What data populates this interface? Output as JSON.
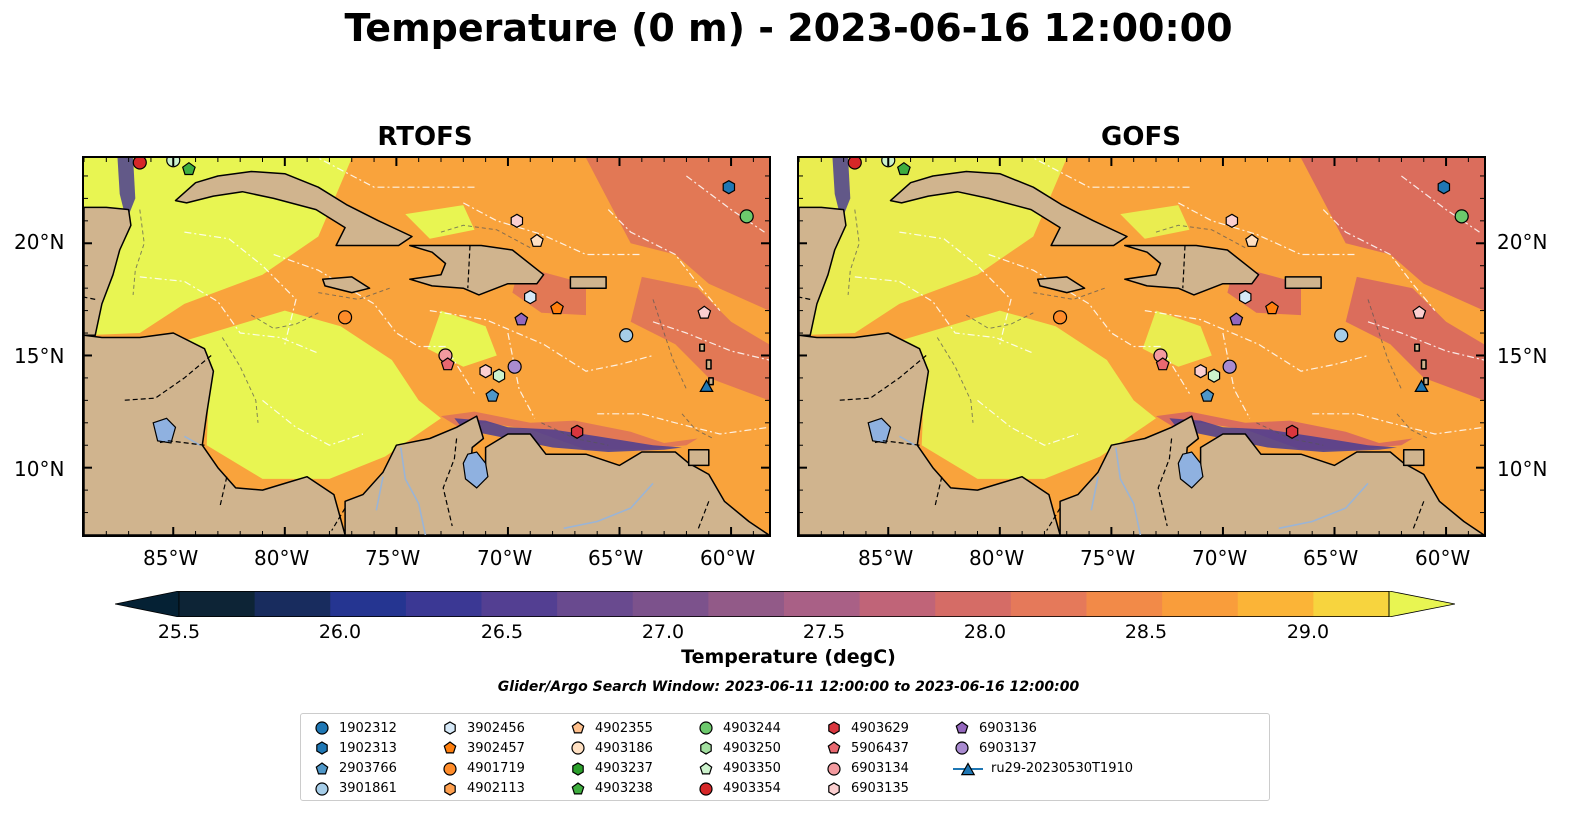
{
  "title": "Temperature (0 m) - 2023-06-16 12:00:00",
  "panels": [
    {
      "title": "RTOFS"
    },
    {
      "title": "GOFS"
    }
  ],
  "axes": {
    "x_ticks": [
      "85°W",
      "80°W",
      "75°W",
      "70°W",
      "65°W",
      "60°W"
    ],
    "x_values": [
      -85,
      -80,
      -75,
      -70,
      -65,
      -60
    ],
    "y_ticks": [
      "20°N",
      "15°N",
      "10°N"
    ],
    "y_values": [
      20,
      15,
      10
    ],
    "lon_range": [
      -89,
      -58.3
    ],
    "lat_range": [
      7,
      23.8
    ]
  },
  "colorbar": {
    "title": "Temperature (degC)",
    "ticks": [
      "25.5",
      "26.0",
      "26.5",
      "27.0",
      "27.5",
      "28.0",
      "28.5",
      "29.0"
    ],
    "range": [
      25.25,
      29.25
    ],
    "colors": [
      "#0d2436",
      "#182c5e",
      "#253591",
      "#3b3894",
      "#533f92",
      "#694a8f",
      "#7c528c",
      "#925a88",
      "#a96086",
      "#c06478",
      "#d56c66",
      "#e5795a",
      "#f28a48",
      "#f99d3b",
      "#fbb437",
      "#f7d43e"
    ],
    "under_color": "#052134",
    "over_color": "#e8f552"
  },
  "colors": {
    "land": "#d0b48e",
    "sea_warm": "#e8f552",
    "sea_mid": "#f9a33c",
    "sea_hot": "#d96a5e",
    "lake": "#8fb1e0"
  },
  "search_window": "Glider/Argo Search Window: 2023-06-11 12:00:00 to 2023-06-16 12:00:00",
  "legend": [
    {
      "label": "1902312",
      "marker": "circle",
      "color": "#1f77b4"
    },
    {
      "label": "1902313",
      "marker": "hexagon",
      "color": "#1f77b4"
    },
    {
      "label": "2903766",
      "marker": "pentagon",
      "color": "#4f97c8"
    },
    {
      "label": "3901861",
      "marker": "circle",
      "color": "#a6cde8"
    },
    {
      "label": "3902456",
      "marker": "hexagon",
      "color": "#d6e9f8"
    },
    {
      "label": "3902457",
      "marker": "pentagon",
      "color": "#ff7f0e"
    },
    {
      "label": "4901719",
      "marker": "circle",
      "color": "#ff8c2a"
    },
    {
      "label": "4902113",
      "marker": "hexagon",
      "color": "#ffa04f"
    },
    {
      "label": "4902355",
      "marker": "pentagon",
      "color": "#ffc08c"
    },
    {
      "label": "4903186",
      "marker": "circle",
      "color": "#ffe0c2"
    },
    {
      "label": "4903237",
      "marker": "hexagon",
      "color": "#2ca02c"
    },
    {
      "label": "4903238",
      "marker": "pentagon",
      "color": "#3fae3f"
    },
    {
      "label": "4903244",
      "marker": "circle",
      "color": "#6cc96c"
    },
    {
      "label": "4903250",
      "marker": "hexagon",
      "color": "#a3e0a0"
    },
    {
      "label": "4903350",
      "marker": "pentagon",
      "color": "#ccf2cc"
    },
    {
      "label": "4903354",
      "marker": "circle",
      "color": "#d62728"
    },
    {
      "label": "4903629",
      "marker": "hexagon",
      "color": "#d9363e"
    },
    {
      "label": "5906437",
      "marker": "pentagon",
      "color": "#e86870"
    },
    {
      "label": "6903134",
      "marker": "circle",
      "color": "#f39a9f"
    },
    {
      "label": "6903135",
      "marker": "hexagon",
      "color": "#fbcfd0"
    },
    {
      "label": "6903136",
      "marker": "pentagon",
      "color": "#9467bd"
    },
    {
      "label": "6903137",
      "marker": "circle",
      "color": "#a98bd0"
    },
    {
      "label": "ru29-20230530T1910",
      "marker": "triangle-line",
      "color": "#1f77b4"
    }
  ],
  "floats": [
    {
      "lon": -86.5,
      "lat": 23.6,
      "marker": "circle",
      "color": "#d62728"
    },
    {
      "lon": -85.0,
      "lat": 23.7,
      "marker": "circle",
      "color": "#ccf2cc"
    },
    {
      "lon": -84.3,
      "lat": 23.3,
      "marker": "pentagon",
      "color": "#3fae3f"
    },
    {
      "lon": -60.1,
      "lat": 22.5,
      "marker": "hexagon",
      "color": "#1f77b4"
    },
    {
      "lon": -59.3,
      "lat": 21.2,
      "marker": "circle",
      "color": "#6cc96c"
    },
    {
      "lon": -69.6,
      "lat": 21.0,
      "marker": "hexagon",
      "color": "#fbcfd0"
    },
    {
      "lon": -68.7,
      "lat": 20.1,
      "marker": "pentagon",
      "color": "#ffe0c2"
    },
    {
      "lon": -77.3,
      "lat": 16.7,
      "marker": "circle",
      "color": "#ff8c2a"
    },
    {
      "lon": -69.0,
      "lat": 17.6,
      "marker": "hexagon",
      "color": "#d6e9f8"
    },
    {
      "lon": -67.8,
      "lat": 17.1,
      "marker": "pentagon",
      "color": "#ff7f0e"
    },
    {
      "lon": -69.4,
      "lat": 16.6,
      "marker": "pentagon",
      "color": "#9467bd"
    },
    {
      "lon": -64.7,
      "lat": 15.9,
      "marker": "circle",
      "color": "#a6cde8"
    },
    {
      "lon": -61.2,
      "lat": 16.9,
      "marker": "pentagon",
      "color": "#fbcfd0"
    },
    {
      "lon": -72.8,
      "lat": 15.0,
      "marker": "circle",
      "color": "#f39a9f"
    },
    {
      "lon": -72.7,
      "lat": 14.6,
      "marker": "pentagon",
      "color": "#e86870"
    },
    {
      "lon": -71.0,
      "lat": 14.3,
      "marker": "hexagon",
      "color": "#fbcfd0"
    },
    {
      "lon": -70.4,
      "lat": 14.1,
      "marker": "hexagon",
      "color": "#ccf2cc"
    },
    {
      "lon": -69.7,
      "lat": 14.5,
      "marker": "circle",
      "color": "#a98bd0"
    },
    {
      "lon": -70.7,
      "lat": 13.2,
      "marker": "pentagon",
      "color": "#4f97c8"
    },
    {
      "lon": -66.9,
      "lat": 11.6,
      "marker": "hexagon",
      "color": "#d9363e"
    },
    {
      "lon": -61.1,
      "lat": 13.6,
      "marker": "triangle",
      "color": "#1f77b4"
    }
  ]
}
